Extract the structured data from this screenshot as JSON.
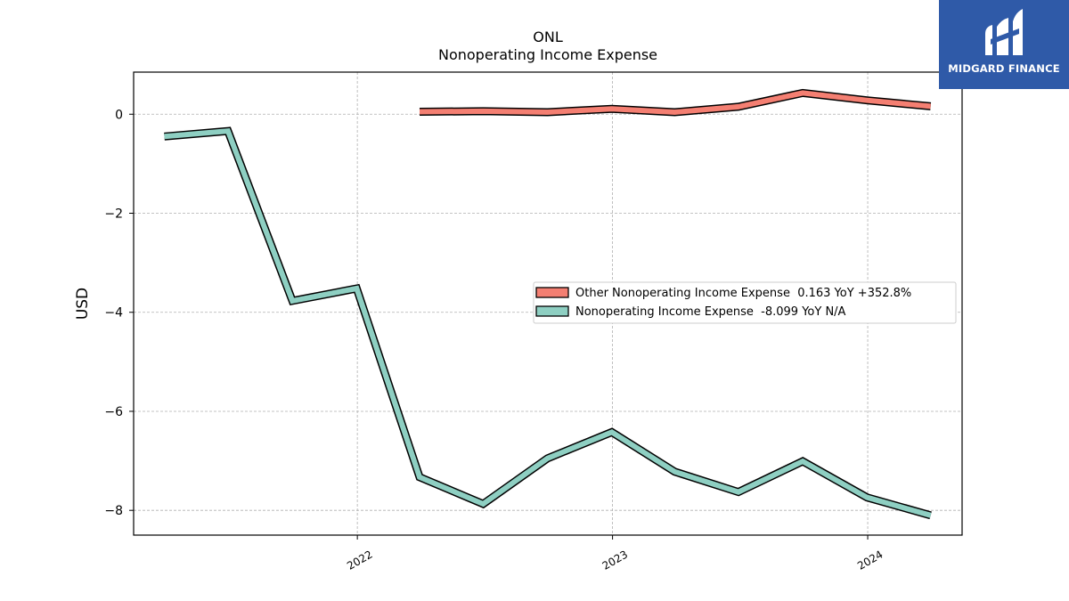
{
  "chart_data": {
    "type": "line",
    "title": "ONL",
    "subtitle": "Nonoperating Income Expense",
    "ylabel": "USD",
    "xlabel": "",
    "ylim": [
      -8.5,
      0.85
    ],
    "xlim": [
      "2021-02-15",
      "2024-05-15"
    ],
    "yticks": [
      0,
      -2,
      -4,
      -6,
      -8
    ],
    "ytick_labels": [
      "0",
      "−2",
      "−4",
      "−6",
      "−8"
    ],
    "xticks": [
      "2022-01-01",
      "2023-01-01",
      "2024-01-01"
    ],
    "xtick_labels": [
      "2022",
      "2023",
      "2024"
    ],
    "grid": true,
    "legend_position": "center-right",
    "series": [
      {
        "name": "Other Nonoperating Income Expense",
        "legend": "Other Nonoperating Income Expense  0.163 YoY +352.8%",
        "color": "#f47f72",
        "x": [
          "2022-03-31",
          "2022-06-30",
          "2022-09-30",
          "2022-12-31",
          "2023-03-31",
          "2023-06-30",
          "2023-09-30",
          "2023-12-31",
          "2024-03-31"
        ],
        "y": [
          0.05,
          0.06,
          0.04,
          0.11,
          0.04,
          0.15,
          0.43,
          0.28,
          0.16
        ]
      },
      {
        "name": "Nonoperating Income Expense",
        "legend": "Nonoperating Income Expense  -8.099 YoY N/A",
        "color": "#8ecfc2",
        "x": [
          "2021-03-31",
          "2021-06-30",
          "2021-09-30",
          "2021-12-31",
          "2022-03-31",
          "2022-06-30",
          "2022-09-30",
          "2022-12-31",
          "2023-03-31",
          "2023-06-30",
          "2023-09-30",
          "2023-12-31",
          "2024-03-31"
        ],
        "y": [
          -0.45,
          -0.34,
          -3.77,
          -3.52,
          -7.33,
          -7.87,
          -6.95,
          -6.42,
          -7.22,
          -7.63,
          -7.01,
          -7.74,
          -8.1
        ]
      }
    ]
  },
  "logo": {
    "text": "MIDGARD FINANCE",
    "background": "#2f5aa8"
  }
}
